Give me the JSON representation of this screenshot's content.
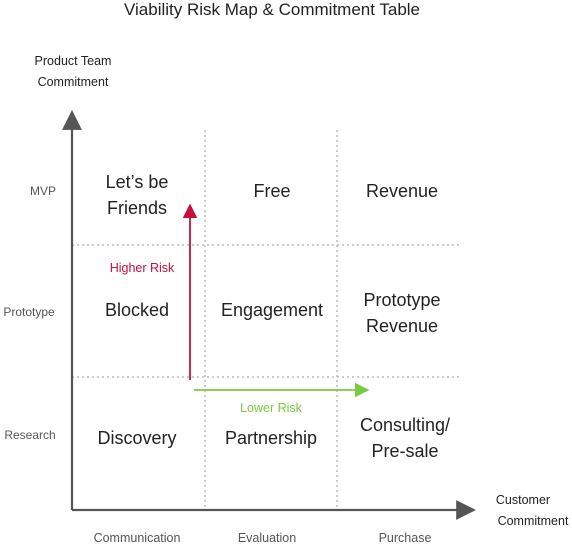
{
  "title": "Viability Risk Map & Commitment Table",
  "y_axis": {
    "label_lines": [
      "Product Team",
      "Commitment"
    ]
  },
  "x_axis": {
    "label_lines": [
      "Customer",
      "Commitment"
    ]
  },
  "rows": [
    "MVP",
    "Prototype",
    "Research"
  ],
  "columns": [
    "Communication",
    "Evaluation",
    "Purchase"
  ],
  "cells": [
    [
      {
        "lines": [
          "Let’s be",
          "Friends"
        ]
      },
      {
        "lines": [
          "Free"
        ]
      },
      {
        "lines": [
          "Revenue"
        ]
      }
    ],
    [
      {
        "lines": [
          "Blocked"
        ]
      },
      {
        "lines": [
          "Engagement"
        ]
      },
      {
        "lines": [
          "Prototype",
          "Revenue"
        ]
      }
    ],
    [
      {
        "lines": [
          "Discovery"
        ]
      },
      {
        "lines": [
          "Partnership"
        ]
      },
      {
        "lines": [
          "Consulting/",
          "Pre-sale"
        ]
      }
    ]
  ],
  "higher_risk": {
    "label": "Higher Risk",
    "color": "#c8103c"
  },
  "lower_risk": {
    "label": "Lower Risk",
    "color": "#7ac943"
  },
  "colors": {
    "axis": "#555555",
    "grid": "#999999"
  }
}
